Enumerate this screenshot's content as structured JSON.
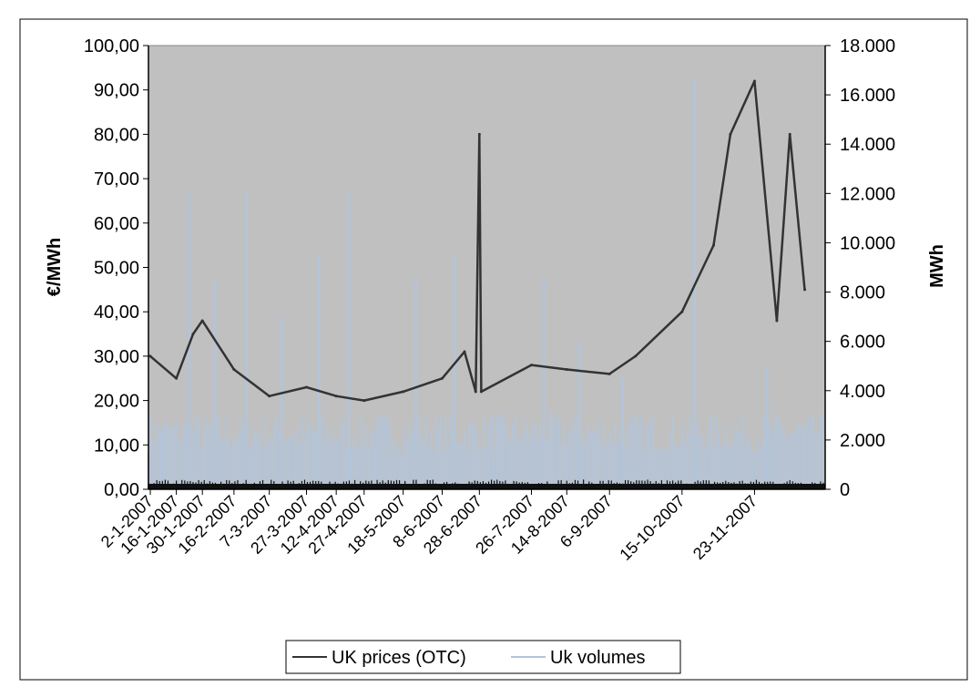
{
  "chart_data": {
    "type": "line",
    "title": "",
    "ylabel": "€/MWh",
    "y2label": "MWh",
    "ylim": [
      0,
      100
    ],
    "y2lim": [
      0,
      18000
    ],
    "y_ticks": [
      "0,00",
      "10,00",
      "20,00",
      "30,00",
      "40,00",
      "50,00",
      "60,00",
      "70,00",
      "80,00",
      "90,00",
      "100,00"
    ],
    "y2_ticks": [
      "0",
      "2.000",
      "4.000",
      "6.000",
      "8.000",
      "10.000",
      "12.000",
      "14.000",
      "16.000",
      "18.000"
    ],
    "x_ticks": [
      "2-1-2007",
      "16-1-2007",
      "30-1-2007",
      "16-2-2007",
      "7-3-2007",
      "27-3-2007",
      "12-4-2007",
      "27-4-2007",
      "18-5-2007",
      "8-6-2007",
      "28-6-2007",
      "26-7-2007",
      "14-8-2007",
      "6-9-2007",
      "15-10-2007",
      "23-11-2007"
    ],
    "grid": false,
    "legend_position": "bottom",
    "background": "#c0c0c0",
    "series": [
      {
        "name": "UK prices (OTC)",
        "axis": "left",
        "color": "#333333",
        "x": [
          "2-1-2007",
          "16-1-2007",
          "25-1-2007",
          "30-1-2007",
          "16-2-2007",
          "7-3-2007",
          "27-3-2007",
          "12-4-2007",
          "27-4-2007",
          "18-5-2007",
          "8-6-2007",
          "20-6-2007",
          "26-6-2007",
          "28-6-2007",
          "29-6-2007",
          "26-7-2007",
          "14-8-2007",
          "6-9-2007",
          "20-9-2007",
          "15-10-2007",
          "1-11-2007",
          "10-11-2007",
          "23-11-2007",
          "5-12-2007",
          "12-12-2007",
          "20-12-2007"
        ],
        "values": [
          30,
          25,
          35,
          38,
          27,
          21,
          23,
          21,
          20,
          22,
          25,
          31,
          22,
          80,
          22,
          28,
          27,
          26,
          30,
          40,
          55,
          80,
          92,
          38,
          80,
          45
        ]
      },
      {
        "name": "Uk volumes",
        "axis": "right",
        "color": "#b4c4d8",
        "x": [
          "2-1-2007",
          "16-1-2007",
          "30-1-2007",
          "16-2-2007",
          "7-3-2007",
          "27-3-2007",
          "12-4-2007",
          "27-4-2007",
          "18-5-2007",
          "8-6-2007",
          "28-6-2007",
          "26-7-2007",
          "14-8-2007",
          "6-9-2007",
          "15-10-2007",
          "23-11-2007"
        ],
        "values": [
          2500,
          12000,
          8500,
          12000,
          7000,
          9500,
          12000,
          2500,
          8500,
          9500,
          3000,
          8500,
          6000,
          4500,
          16700,
          5000
        ]
      }
    ]
  }
}
